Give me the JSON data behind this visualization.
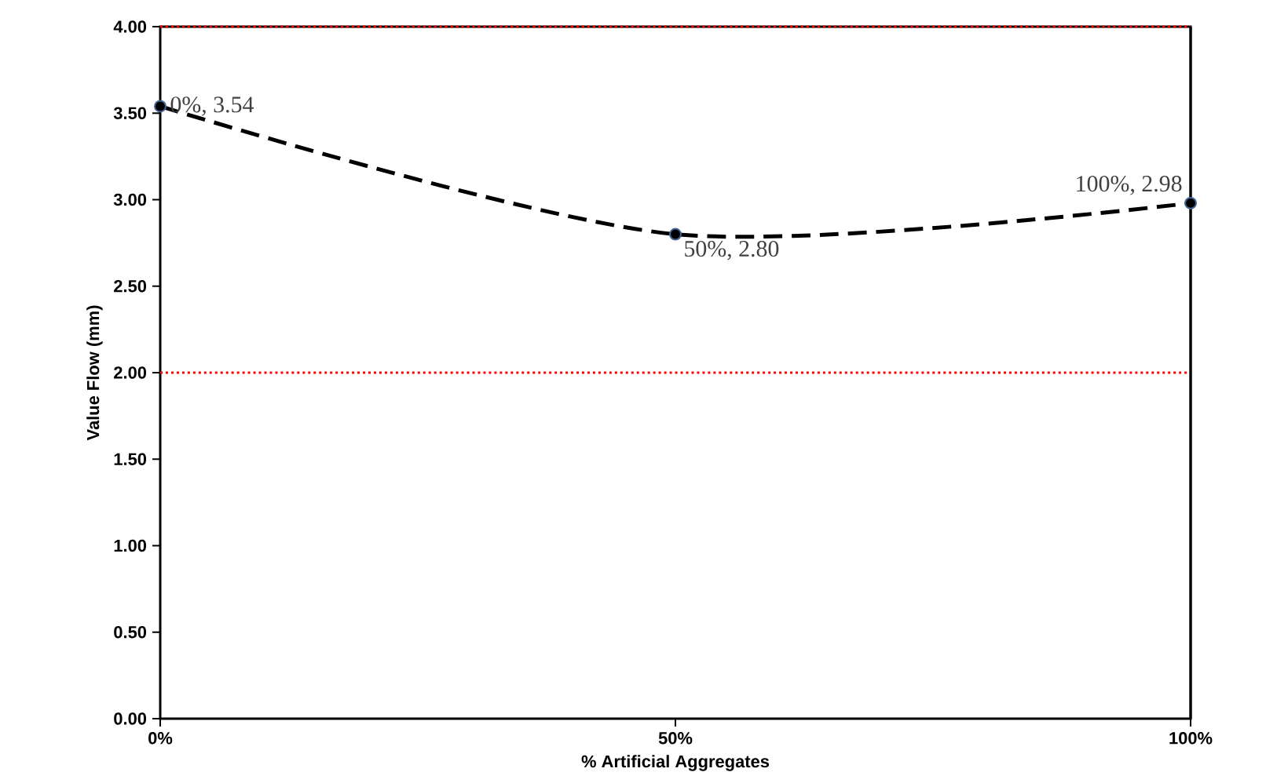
{
  "chart_data": {
    "type": "line",
    "xlabel": "% Artificial Aggregates",
    "ylabel": "Value Flow (mm)",
    "x": [
      0,
      50,
      100
    ],
    "series": [
      {
        "color": "#000000",
        "values": [
          3.54,
          2.8,
          2.98
        ],
        "value_labels": [
          "0%, 3.54",
          "50%, 2.80",
          "100%, 2.98"
        ]
      }
    ],
    "xlim": [
      0,
      100
    ],
    "xticks": [
      {
        "value": 0,
        "label": "0%"
      },
      {
        "value": 50,
        "label": "50%"
      },
      {
        "value": 100,
        "label": "100%"
      }
    ],
    "ylim": [
      0,
      4
    ],
    "yticks": [
      {
        "value": 0,
        "label": "0.00"
      },
      {
        "value": 0.5,
        "label": "0.50"
      },
      {
        "value": 1,
        "label": "1.00"
      },
      {
        "value": 1.5,
        "label": "1.50"
      },
      {
        "value": 2,
        "label": "2.00"
      },
      {
        "value": 2.5,
        "label": "2.50"
      },
      {
        "value": 3,
        "label": "3.00"
      },
      {
        "value": 3.5,
        "label": "3.50"
      },
      {
        "value": 4,
        "label": "4.00"
      }
    ],
    "ref_lines": [
      {
        "axis": "y",
        "value": 4,
        "color": "#ff0000",
        "line_style": "dotted"
      },
      {
        "axis": "y",
        "value": 2,
        "color": "#ff0000",
        "line_style": "dotted"
      }
    ],
    "marker": "circle",
    "line_style": "dashed"
  }
}
